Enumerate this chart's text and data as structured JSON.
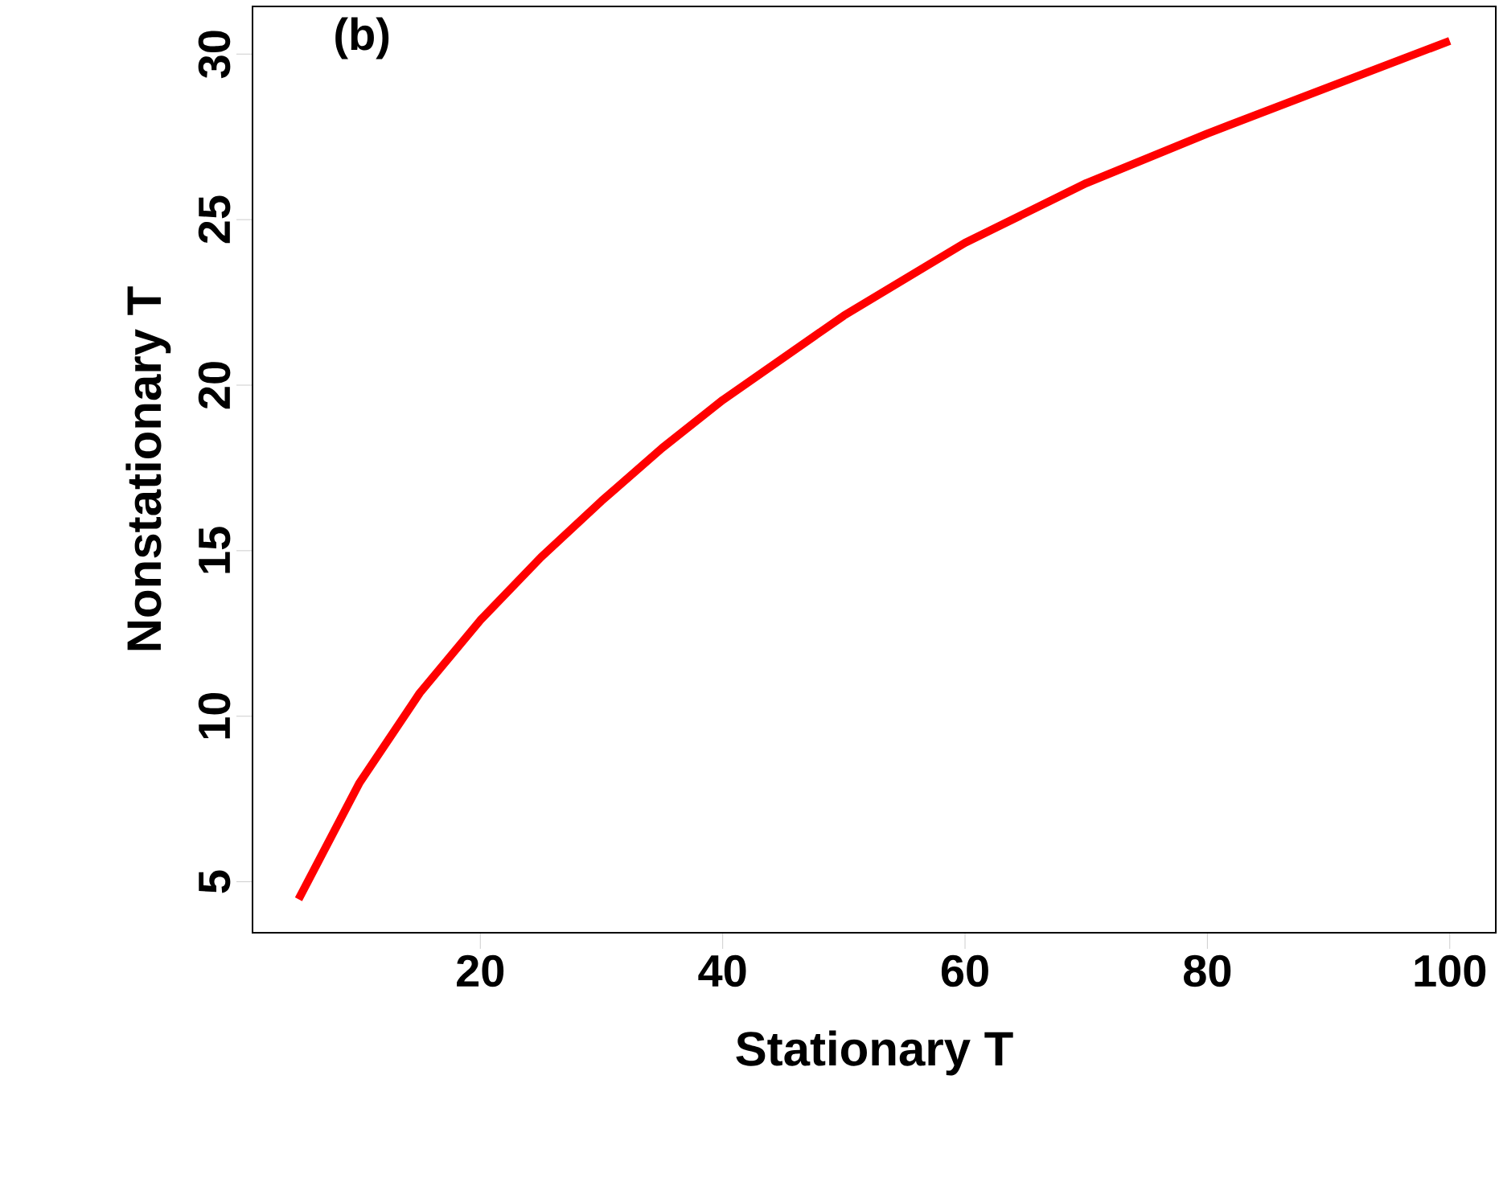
{
  "chart_data": {
    "type": "line",
    "xlabel": "Stationary T",
    "ylabel": "Nonstationary T",
    "annotations": [
      "(b)"
    ],
    "x": [
      5,
      10,
      15,
      20,
      25,
      30,
      35,
      40,
      50,
      60,
      70,
      80,
      90,
      100
    ],
    "series": [
      {
        "color": "#ff0000",
        "values": [
          4.47,
          7.97,
          10.7,
          12.9,
          14.8,
          16.5,
          18.1,
          19.55,
          22.1,
          24.3,
          26.1,
          27.6,
          29.0,
          30.4
        ]
      }
    ],
    "xlim": [
      1.2,
      103.8
    ],
    "ylim": [
      3.46,
      31.44
    ],
    "xticks": [
      20,
      40,
      60,
      80,
      100
    ],
    "yticks": [
      5,
      10,
      15,
      20,
      25,
      30
    ],
    "grid": false,
    "marker": "none",
    "line_style": "solid"
  }
}
